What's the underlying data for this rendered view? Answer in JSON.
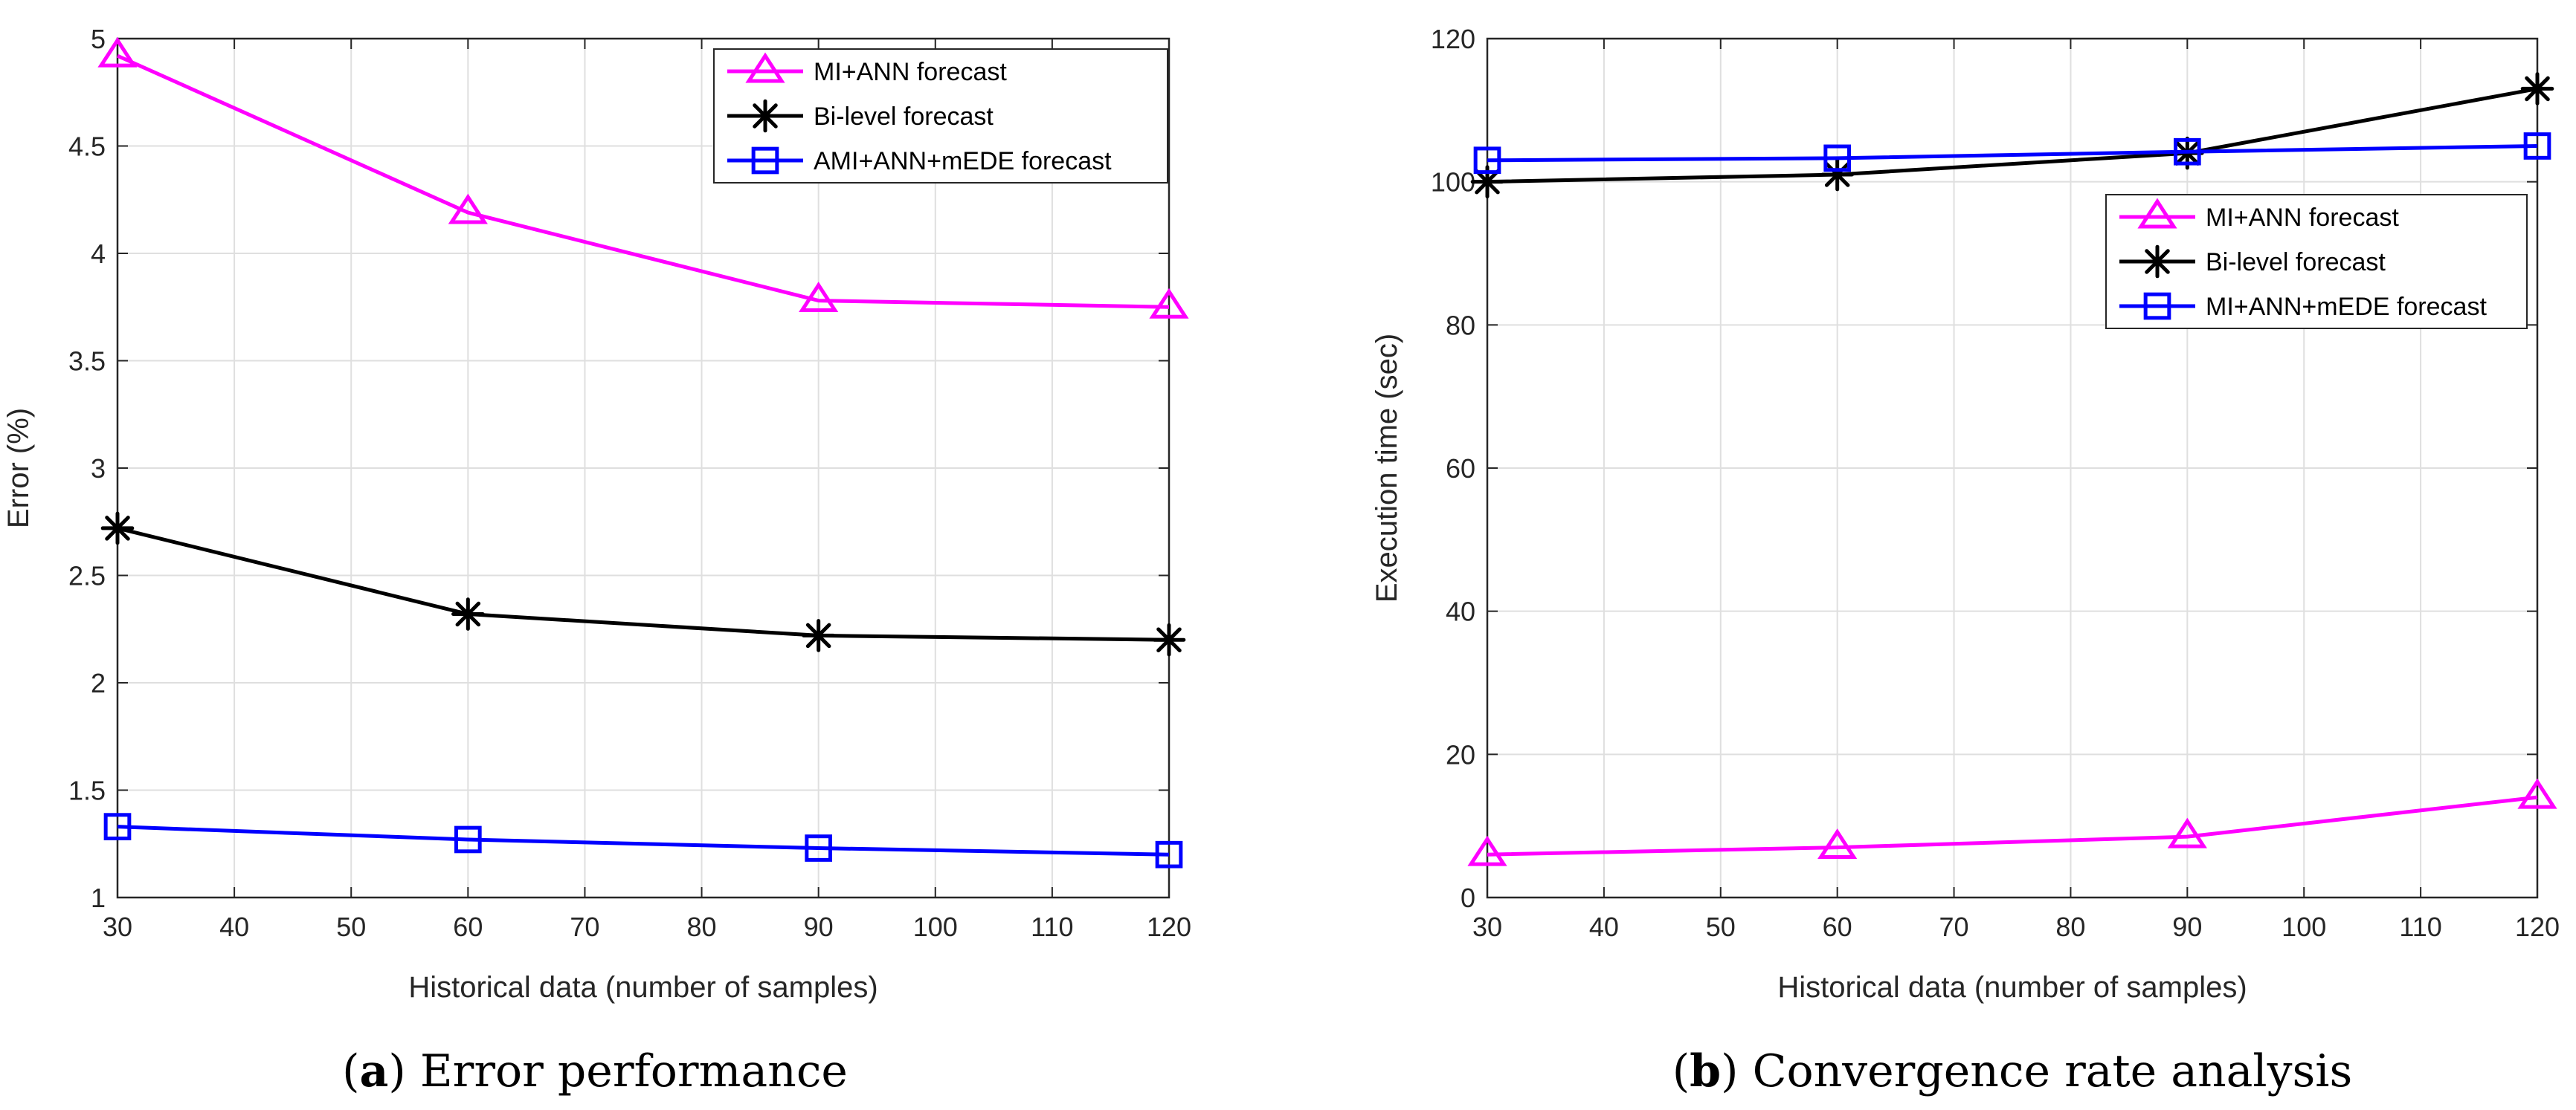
{
  "chart_data": [
    {
      "type": "line",
      "caption_letter": "a",
      "caption_text": "Error performance",
      "title": "",
      "xlabel": "Historical data (number of samples)",
      "ylabel": "Error (%)",
      "xlim": [
        30,
        120
      ],
      "ylim": [
        1,
        5
      ],
      "xticks": [
        30,
        40,
        50,
        60,
        70,
        80,
        90,
        100,
        110,
        120
      ],
      "yticks": [
        1,
        1.5,
        2,
        2.5,
        3,
        3.5,
        4,
        4.5,
        5
      ],
      "grid": true,
      "legend_position": "top-right",
      "x": [
        30,
        60,
        90,
        120
      ],
      "series": [
        {
          "name": "MI+ANN forecast",
          "color": "#ff00ff",
          "marker": "triangle",
          "values": [
            4.92,
            4.19,
            3.78,
            3.75
          ]
        },
        {
          "name": "Bi-level forecast",
          "color": "#000000",
          "marker": "asterisk",
          "values": [
            2.72,
            2.32,
            2.22,
            2.2
          ]
        },
        {
          "name": "AMI+ANN+mEDE forecast",
          "color": "#0000ff",
          "marker": "square",
          "values": [
            1.33,
            1.27,
            1.23,
            1.2
          ]
        }
      ]
    },
    {
      "type": "line",
      "caption_letter": "b",
      "caption_text": "Convergence rate analysis",
      "title": "",
      "xlabel": "Historical data (number of samples)",
      "ylabel": "Execution time (sec)",
      "xlim": [
        30,
        120
      ],
      "ylim": [
        0,
        120
      ],
      "xticks": [
        30,
        40,
        50,
        60,
        70,
        80,
        90,
        100,
        110,
        120
      ],
      "yticks": [
        0,
        20,
        40,
        60,
        80,
        100,
        120
      ],
      "grid": true,
      "legend_position": "right",
      "x": [
        30,
        60,
        90,
        120
      ],
      "series": [
        {
          "name": "MI+ANN forecast",
          "color": "#ff00ff",
          "marker": "triangle",
          "values": [
            6,
            7,
            8.5,
            14
          ]
        },
        {
          "name": "Bi-level forecast",
          "color": "#000000",
          "marker": "asterisk",
          "values": [
            100,
            101,
            104,
            113
          ]
        },
        {
          "name": "MI+ANN+mEDE forecast",
          "color": "#0000ff",
          "marker": "square",
          "values": [
            103,
            103.3,
            104.2,
            105
          ]
        }
      ]
    }
  ]
}
